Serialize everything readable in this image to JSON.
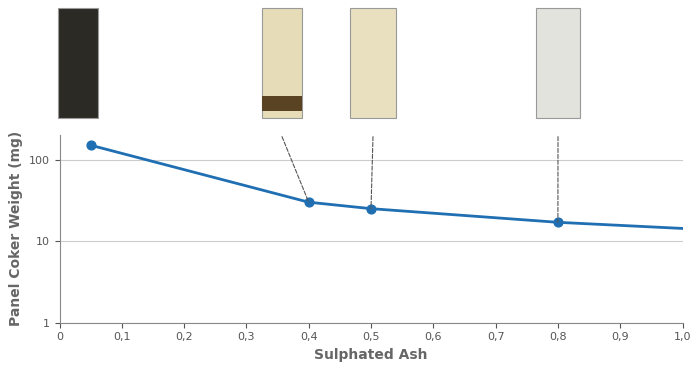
{
  "chart_data": {
    "type": "line",
    "x_label": "Sulphated Ash",
    "y_label": "Panel Coker Weight (mg)",
    "log": "y",
    "grid": true,
    "color": "#1f6fb2",
    "series": [
      {
        "type": "line",
        "x": [
          0.05,
          0.4,
          0.5,
          0.8,
          1.0
        ],
        "values": [
          150,
          30,
          25,
          17,
          14.3
        ],
        "color": "#1f6fb2"
      },
      {
        "type": "scatter",
        "x": [
          0.05,
          0.4,
          0.5,
          0.8
        ],
        "values": [
          150,
          30,
          25,
          17
        ],
        "color": "#1f6fb2",
        "marker": "circle"
      }
    ],
    "xlim": [
      0,
      1.0
    ],
    "xticks": [
      0,
      {
        "value": 0.1,
        "label": "0,1"
      },
      {
        "value": 0.2,
        "label": "0,2"
      },
      {
        "value": 0.3,
        "label": "0,3"
      },
      {
        "value": 0.4,
        "label": "0,4"
      },
      {
        "value": 0.5,
        "label": "0,5"
      },
      {
        "value": 0.6,
        "label": "0,6"
      },
      {
        "value": 0.7,
        "label": "0,7"
      },
      {
        "value": 0.8,
        "label": "0,8"
      },
      {
        "value": 0.9,
        "label": "0,9"
      },
      {
        "value": 1.0,
        "label": "1,0"
      }
    ],
    "ylim": [
      1,
      200
    ],
    "yticks": [
      1,
      10,
      100
    ]
  }
}
